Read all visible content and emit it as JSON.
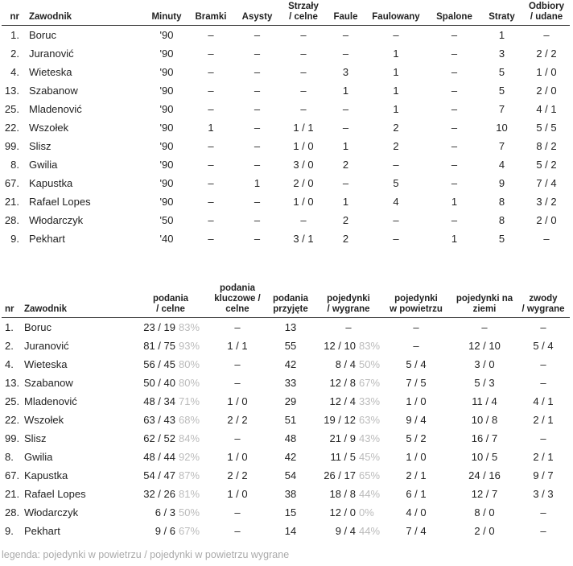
{
  "table1": {
    "header": [
      "nr",
      "Zawodnik",
      "Minuty",
      "Bramki",
      "Asysty",
      "Strzały\n/ celne",
      "Faule",
      "Faulowany",
      "Spalone",
      "Straty",
      "Odbiory\n/ udane"
    ],
    "rows": [
      [
        "1.",
        "Boruc",
        "'90",
        "–",
        "–",
        "–",
        "–",
        "–",
        "–",
        "1",
        "–"
      ],
      [
        "2.",
        "Juranović",
        "'90",
        "–",
        "–",
        "–",
        "–",
        "1",
        "–",
        "3",
        "2 / 2"
      ],
      [
        "4.",
        "Wieteska",
        "'90",
        "–",
        "–",
        "–",
        "3",
        "1",
        "–",
        "5",
        "1 / 0"
      ],
      [
        "13.",
        "Szabanow",
        "'90",
        "–",
        "–",
        "–",
        "1",
        "1",
        "–",
        "5",
        "2 / 0"
      ],
      [
        "25.",
        "Mladenović",
        "'90",
        "–",
        "–",
        "–",
        "–",
        "1",
        "–",
        "7",
        "4 / 1"
      ],
      [
        "22.",
        "Wszołek",
        "'90",
        "1",
        "–",
        "1 / 1",
        "–",
        "2",
        "–",
        "10",
        "5 / 5"
      ],
      [
        "99.",
        "Slisz",
        "'90",
        "–",
        "–",
        "1 / 0",
        "1",
        "2",
        "–",
        "7",
        "8 / 2"
      ],
      [
        "8.",
        "Gwilia",
        "'90",
        "–",
        "–",
        "3 / 0",
        "2",
        "–",
        "–",
        "4",
        "5 / 2"
      ],
      [
        "67.",
        "Kapustka",
        "'90",
        "–",
        "1",
        "2 / 0",
        "–",
        "5",
        "–",
        "9",
        "7 / 4"
      ],
      [
        "21.",
        "Rafael Lopes",
        "'90",
        "–",
        "–",
        "1 / 0",
        "1",
        "4",
        "1",
        "8",
        "3 / 2"
      ],
      [
        "28.",
        "Włodarczyk",
        "'50",
        "–",
        "–",
        "–",
        "2",
        "–",
        "–",
        "8",
        "2 / 0"
      ],
      [
        "9.",
        "Pekhart",
        "'40",
        "–",
        "–",
        "3 / 1",
        "2",
        "–",
        "1",
        "5",
        "–"
      ]
    ]
  },
  "table2": {
    "header": [
      "nr",
      "Zawodnik",
      "podania\n/ celne",
      "podania\nkluczowe /\ncelne",
      "podania\nprzyjęte",
      "pojedynki\n/ wygrane",
      "pojedynki\nw powietrzu",
      "pojedynki na\nziemi",
      "zwody\n/ wygrane"
    ],
    "rows": [
      [
        "1.",
        "Boruc",
        [
          "23 / 19",
          "83%"
        ],
        "–",
        "13",
        "–",
        "–",
        "–",
        "–"
      ],
      [
        "2.",
        "Juranović",
        [
          "81 / 75",
          "93%"
        ],
        "1 / 1",
        "55",
        [
          "12 / 10",
          "83%"
        ],
        "–",
        "12 / 10",
        "5 / 4"
      ],
      [
        "4.",
        "Wieteska",
        [
          "56 / 45",
          "80%"
        ],
        "–",
        "42",
        [
          "8 / 4",
          "50%"
        ],
        "5 / 4",
        "3 / 0",
        "–"
      ],
      [
        "13.",
        "Szabanow",
        [
          "50 / 40",
          "80%"
        ],
        "–",
        "33",
        [
          "12 / 8",
          "67%"
        ],
        "7 / 5",
        "5 / 3",
        "–"
      ],
      [
        "25.",
        "Mladenović",
        [
          "48 / 34",
          "71%"
        ],
        "1 / 0",
        "29",
        [
          "12 / 4",
          "33%"
        ],
        "1 / 0",
        "11 / 4",
        "4 / 1"
      ],
      [
        "22.",
        "Wszołek",
        [
          "63 / 43",
          "68%"
        ],
        "2 / 2",
        "51",
        [
          "19 / 12",
          "63%"
        ],
        "9 / 4",
        "10 / 8",
        "2 / 1"
      ],
      [
        "99.",
        "Slisz",
        [
          "62 / 52",
          "84%"
        ],
        "–",
        "48",
        [
          "21 / 9",
          "43%"
        ],
        "5 / 2",
        "16 / 7",
        "–"
      ],
      [
        "8.",
        "Gwilia",
        [
          "48 / 44",
          "92%"
        ],
        "1 / 0",
        "42",
        [
          "11 / 5",
          "45%"
        ],
        "1 / 0",
        "10 / 5",
        "2 / 1"
      ],
      [
        "67.",
        "Kapustka",
        [
          "54 / 47",
          "87%"
        ],
        "2 / 2",
        "54",
        [
          "26 / 17",
          "65%"
        ],
        "2 / 1",
        "24 / 16",
        "9 / 7"
      ],
      [
        "21.",
        "Rafael Lopes",
        [
          "32 / 26",
          "81%"
        ],
        "1 / 0",
        "38",
        [
          "18 / 8",
          "44%"
        ],
        "6 / 1",
        "12 / 7",
        "3 / 3"
      ],
      [
        "28.",
        "Włodarczyk",
        [
          "6 / 3",
          "50%"
        ],
        "–",
        "15",
        [
          "12 / 0",
          "0%"
        ],
        "4 / 0",
        "8 / 0",
        "–"
      ],
      [
        "9.",
        "Pekhart",
        [
          "9 / 6",
          "67%"
        ],
        "–",
        "14",
        [
          "9 / 4",
          "44%"
        ],
        "7 / 4",
        "2 / 0",
        "–"
      ]
    ]
  },
  "legend": "legenda: pojedynki w powietrzu / pojedynki w powietrzu wygrane"
}
